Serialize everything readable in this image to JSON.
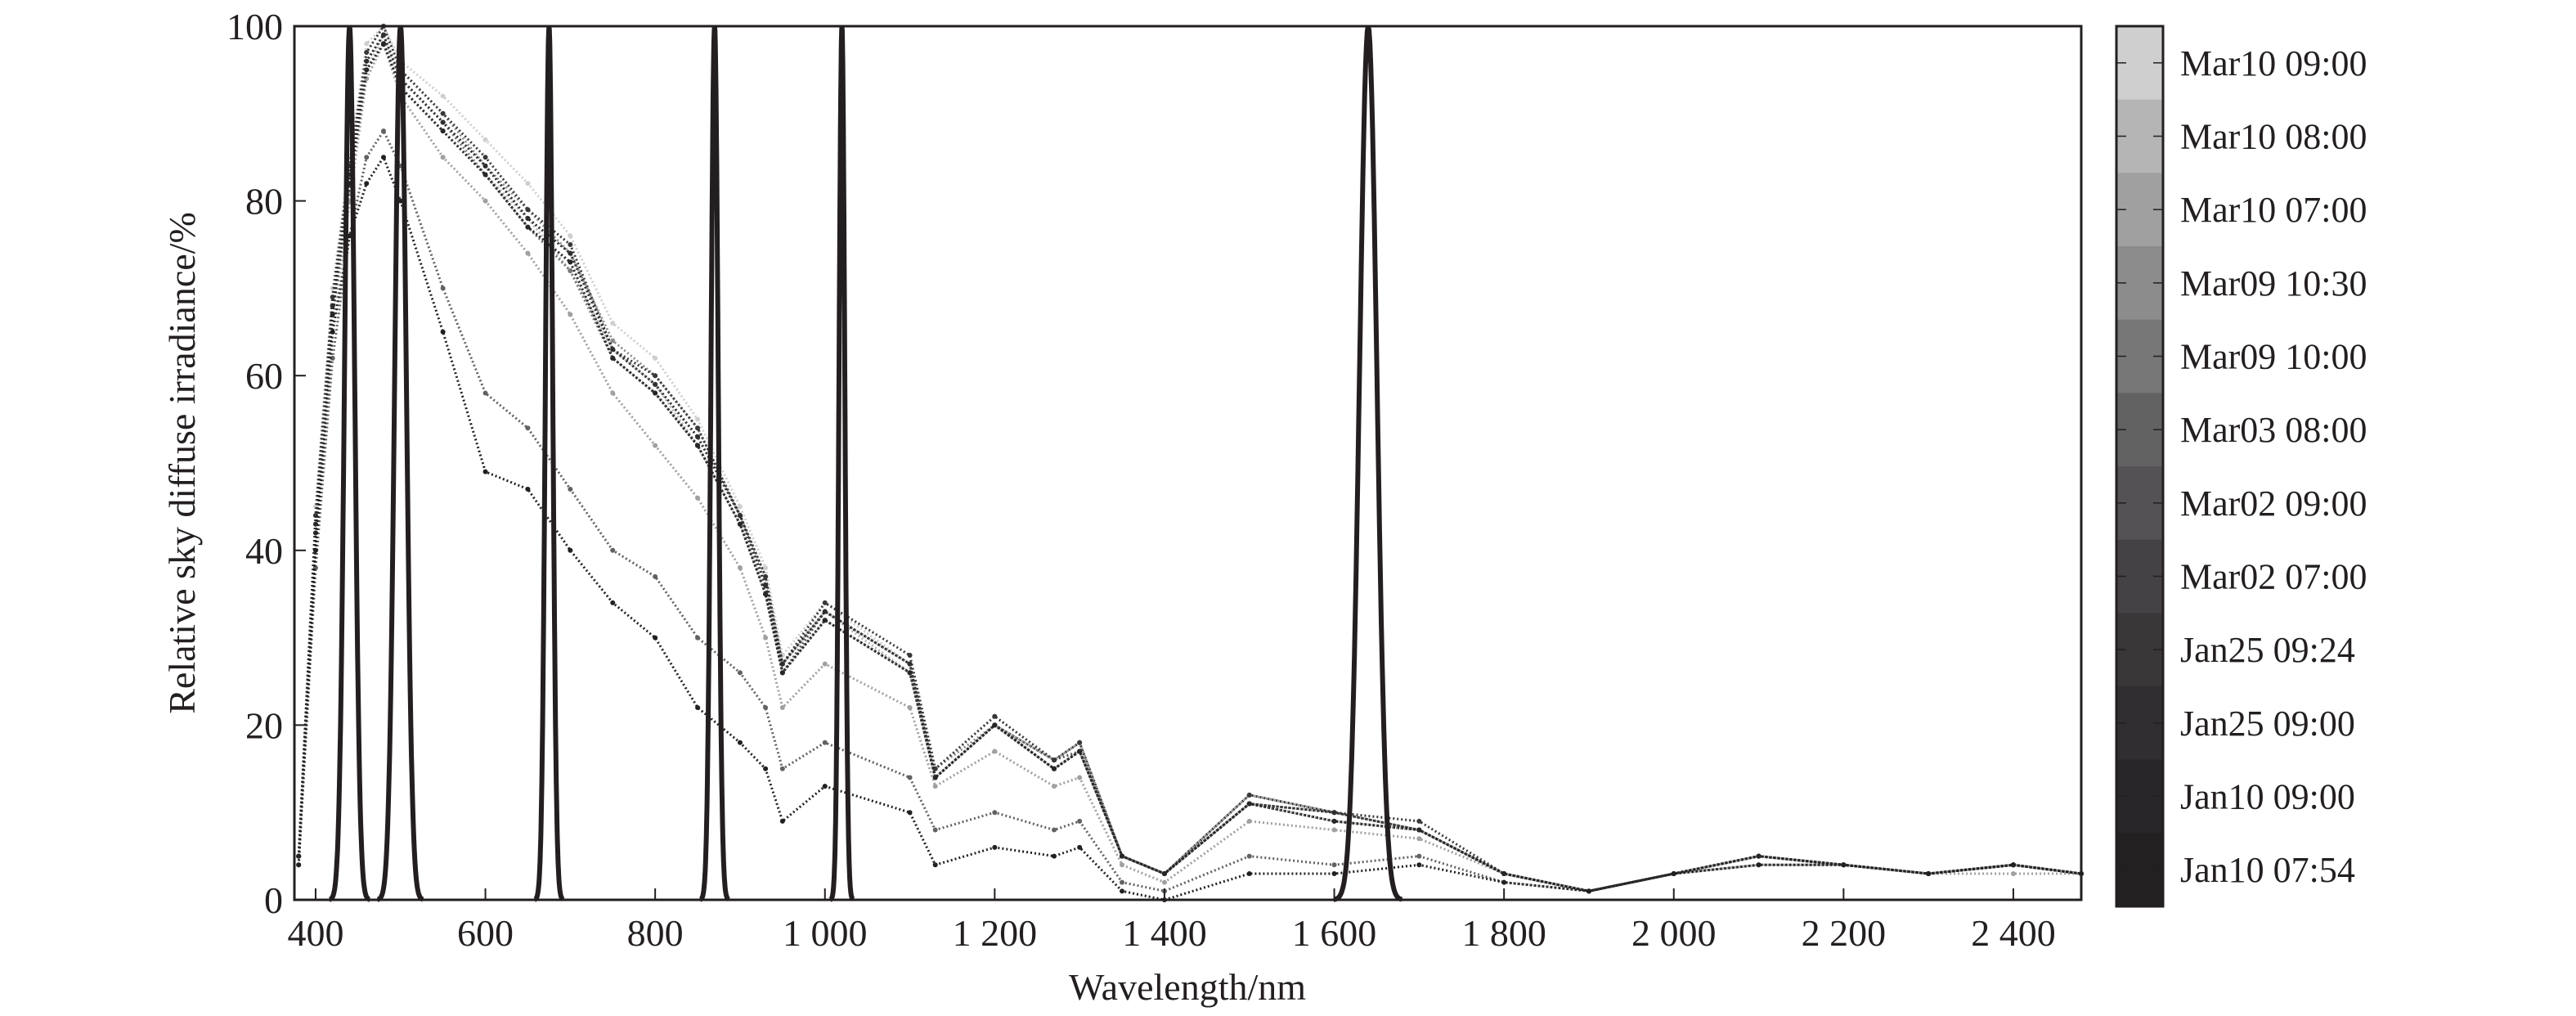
{
  "chart_data": {
    "type": "scatter",
    "title": "",
    "xlabel": "Wavelength/nm",
    "ylabel": "Relative sky diffuse irradiance/%",
    "xlim": [
      375,
      2480
    ],
    "ylim": [
      0,
      100
    ],
    "grid": false,
    "legend_placement": "right colorbar",
    "xticks": [
      400,
      600,
      800,
      1000,
      1200,
      1400,
      1600,
      1800,
      2000,
      2200,
      2400
    ],
    "xtick_labels": [
      "400",
      "600",
      "800",
      "1 000",
      "1 200",
      "1 400",
      "1 600",
      "1 800",
      "2 000",
      "2 200",
      "2 400"
    ],
    "yticks": [
      0,
      20,
      40,
      60,
      80,
      100
    ],
    "ytick_labels": [
      "0",
      "20",
      "40",
      "60",
      "80",
      "100"
    ],
    "x": [
      380,
      400,
      420,
      440,
      460,
      480,
      500,
      550,
      600,
      650,
      700,
      750,
      800,
      850,
      900,
      930,
      950,
      1000,
      1100,
      1130,
      1200,
      1270,
      1300,
      1350,
      1400,
      1500,
      1600,
      1700,
      1800,
      1900,
      2000,
      2100,
      2200,
      2300,
      2400,
      2480
    ],
    "series": [
      {
        "name": "Mar10 09:00",
        "color": "#cfcfcf",
        "values": [
          5,
          45,
          70,
          85,
          98,
          100,
          96,
          92,
          87,
          82,
          76,
          66,
          62,
          55,
          45,
          38,
          28,
          34,
          27,
          15,
          21,
          16,
          18,
          5,
          3,
          12,
          10,
          8,
          3,
          1,
          3,
          5,
          4,
          3,
          4,
          3
        ]
      },
      {
        "name": "Mar10 08:00",
        "color": "#b5b5b5",
        "values": [
          5,
          43,
          67,
          81,
          95,
          99,
          93,
          88,
          83,
          78,
          72,
          63,
          59,
          52,
          43,
          36,
          27,
          33,
          26,
          14,
          20,
          15,
          17,
          5,
          3,
          11,
          9,
          8,
          3,
          1,
          3,
          5,
          4,
          3,
          4,
          3
        ]
      },
      {
        "name": "Mar10 07:00",
        "color": "#a0a0a0",
        "values": [
          4,
          40,
          65,
          80,
          94,
          98,
          92,
          85,
          80,
          74,
          67,
          58,
          52,
          46,
          38,
          30,
          22,
          27,
          22,
          13,
          17,
          13,
          14,
          4,
          2,
          9,
          8,
          7,
          3,
          1,
          3,
          4,
          4,
          3,
          3,
          3
        ]
      },
      {
        "name": "Mar09 10:30",
        "color": "#8c8c8c",
        "values": [
          5,
          44,
          69,
          84,
          97,
          100,
          95,
          90,
          84,
          79,
          74,
          64,
          60,
          54,
          44,
          37,
          27,
          33,
          27,
          15,
          20,
          16,
          18,
          5,
          3,
          12,
          10,
          8,
          3,
          1,
          3,
          5,
          4,
          3,
          4,
          3
        ]
      },
      {
        "name": "Mar09 10:00",
        "color": "#777777",
        "values": [
          5,
          42,
          68,
          83,
          96,
          99,
          94,
          89,
          83,
          77,
          72,
          62,
          58,
          52,
          43,
          35,
          26,
          32,
          26,
          14,
          20,
          15,
          17,
          5,
          3,
          11,
          9,
          8,
          3,
          1,
          3,
          5,
          4,
          3,
          4,
          3
        ]
      },
      {
        "name": "Mar03 08:00",
        "color": "#626262",
        "values": [
          4,
          38,
          62,
          76,
          85,
          88,
          84,
          70,
          58,
          54,
          47,
          40,
          37,
          30,
          26,
          22,
          15,
          18,
          14,
          8,
          10,
          8,
          9,
          2,
          1,
          5,
          4,
          5,
          2,
          1,
          3,
          4,
          4,
          3,
          4,
          3
        ]
      },
      {
        "name": "Mar02 09:00",
        "color": "#545254",
        "values": [
          5,
          43,
          68,
          83,
          96,
          99,
          94,
          89,
          84,
          78,
          74,
          63,
          59,
          53,
          44,
          36,
          26,
          33,
          27,
          14,
          20,
          16,
          17,
          5,
          3,
          11,
          10,
          8,
          3,
          1,
          3,
          5,
          4,
          3,
          4,
          3
        ]
      },
      {
        "name": "Mar02 07:00",
        "color": "#454245",
        "values": [
          5,
          42,
          67,
          82,
          95,
          98,
          93,
          88,
          83,
          77,
          73,
          62,
          58,
          52,
          43,
          35,
          26,
          32,
          26,
          14,
          20,
          15,
          17,
          5,
          3,
          11,
          9,
          8,
          3,
          1,
          3,
          5,
          4,
          3,
          4,
          3
        ]
      },
      {
        "name": "Jan25 09:24",
        "color": "#3a3739",
        "values": [
          5,
          44,
          69,
          84,
          97,
          100,
          95,
          90,
          85,
          79,
          75,
          63,
          60,
          54,
          44,
          37,
          27,
          34,
          28,
          15,
          21,
          16,
          18,
          5,
          3,
          12,
          10,
          9,
          3,
          1,
          3,
          5,
          4,
          3,
          4,
          3
        ]
      },
      {
        "name": "Jan25 09:00",
        "color": "#302e30",
        "values": [
          5,
          43,
          68,
          83,
          96,
          99,
          94,
          89,
          84,
          78,
          74,
          63,
          59,
          53,
          44,
          36,
          27,
          33,
          27,
          14,
          20,
          15,
          17,
          5,
          3,
          11,
          10,
          8,
          3,
          1,
          3,
          5,
          4,
          3,
          4,
          3
        ]
      },
      {
        "name": "Jan10 09:00",
        "color": "#282628",
        "values": [
          5,
          42,
          67,
          82,
          95,
          98,
          93,
          88,
          83,
          77,
          73,
          62,
          58,
          52,
          43,
          35,
          26,
          32,
          26,
          14,
          20,
          15,
          17,
          5,
          3,
          11,
          9,
          8,
          3,
          1,
          3,
          5,
          4,
          3,
          4,
          3
        ]
      },
      {
        "name": "Jan10 07:54",
        "color": "#222021",
        "values": [
          4,
          40,
          65,
          76,
          82,
          85,
          80,
          65,
          49,
          47,
          40,
          34,
          30,
          22,
          18,
          15,
          9,
          13,
          10,
          4,
          6,
          5,
          6,
          1,
          0,
          3,
          3,
          4,
          2,
          1,
          3,
          4,
          4,
          3,
          4,
          3
        ]
      }
    ],
    "band_filters": [
      {
        "center": 440,
        "fwhm": 14,
        "peak": 100
      },
      {
        "center": 500,
        "fwhm": 16,
        "peak": 100
      },
      {
        "center": 675,
        "fwhm": 10,
        "peak": 100
      },
      {
        "center": 870,
        "fwhm": 10,
        "peak": 100
      },
      {
        "center": 1020,
        "fwhm": 8,
        "peak": 100
      },
      {
        "center": 1640,
        "fwhm": 24,
        "peak": 100
      }
    ],
    "colorbar_labels": [
      "Mar10 09:00",
      "Mar10 08:00",
      "Mar10 07:00",
      "Mar09 10:30",
      "Mar09 10:00",
      "Mar03 08:00",
      "Mar02 09:00",
      "Mar02 07:00",
      "Jan25 09:24",
      "Jan25 09:00",
      "Jan10 09:00",
      "Jan10 07:54"
    ]
  }
}
